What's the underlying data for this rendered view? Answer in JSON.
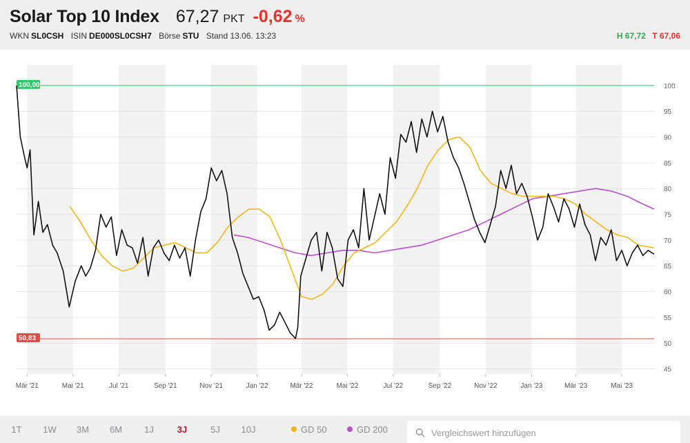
{
  "header": {
    "title": "Solar Top 10 Index",
    "price": "67,27",
    "unit": "PKT",
    "change": "-0,62",
    "change_pct": "%",
    "wkn_label": "WKN",
    "wkn": "SL0CSH",
    "isin_label": "ISIN",
    "isin": "DE000SL0CSH7",
    "boerse_label": "Börse",
    "boerse": "STU",
    "stand": "Stand 13.06. 13:23",
    "high": "H 67,72",
    "low": "T 67,06"
  },
  "colors": {
    "price_line": "#111111",
    "gd50": "#f2b619",
    "gd200": "#b84fc6",
    "high_line": "#2fc76a",
    "low_line": "#e24a45",
    "band": "#f2f2f3",
    "negative": "#e5322d",
    "positive": "#2fa84f"
  },
  "chart_data": {
    "type": "line",
    "title": "Solar Top 10 Index",
    "x_ticks": [
      "Mär '21",
      "Mai '21",
      "Jul '21",
      "Sep '21",
      "Nov '21",
      "Jan '22",
      "Mär '22",
      "Mai '22",
      "Jul '22",
      "Sep '22",
      "Nov '22",
      "Jan '23",
      "Mär '23",
      "Mai '23"
    ],
    "y_ticks": [
      100,
      95,
      90,
      85,
      80,
      75,
      70,
      65,
      60,
      55,
      50,
      45
    ],
    "ylim": [
      44,
      104
    ],
    "x_range": [
      "2021-02-15",
      "2023-06-13"
    ],
    "grid": true,
    "legend_placement": "bottom",
    "reference_lines": [
      {
        "label": "100,00",
        "value": 100.0
      },
      {
        "label": "50,83",
        "value": 50.83
      }
    ],
    "series": [
      {
        "name": "Solar Top 10 Index",
        "x": [
          "2021-02-15",
          "2021-02-20",
          "2021-02-25",
          "2021-03-01",
          "2021-03-05",
          "2021-03-10",
          "2021-03-16",
          "2021-03-22",
          "2021-03-28",
          "2021-04-04",
          "2021-04-10",
          "2021-04-18",
          "2021-04-26",
          "2021-05-04",
          "2021-05-12",
          "2021-05-18",
          "2021-05-24",
          "2021-05-31",
          "2021-06-07",
          "2021-06-14",
          "2021-06-21",
          "2021-06-28",
          "2021-07-05",
          "2021-07-12",
          "2021-07-19",
          "2021-07-26",
          "2021-08-02",
          "2021-08-09",
          "2021-08-16",
          "2021-08-23",
          "2021-08-30",
          "2021-09-06",
          "2021-09-13",
          "2021-09-20",
          "2021-09-27",
          "2021-10-04",
          "2021-10-11",
          "2021-10-18",
          "2021-10-25",
          "2021-11-01",
          "2021-11-08",
          "2021-11-15",
          "2021-11-22",
          "2021-11-29",
          "2021-12-06",
          "2021-12-13",
          "2021-12-20",
          "2021-12-27",
          "2022-01-03",
          "2022-01-10",
          "2022-01-17",
          "2022-01-24",
          "2022-01-31",
          "2022-02-07",
          "2022-02-14",
          "2022-02-21",
          "2022-02-24",
          "2022-02-28",
          "2022-03-07",
          "2022-03-14",
          "2022-03-21",
          "2022-03-28",
          "2022-04-04",
          "2022-04-11",
          "2022-04-18",
          "2022-04-25",
          "2022-05-02",
          "2022-05-09",
          "2022-05-16",
          "2022-05-23",
          "2022-05-30",
          "2022-06-06",
          "2022-06-13",
          "2022-06-20",
          "2022-06-27",
          "2022-07-04",
          "2022-07-11",
          "2022-07-18",
          "2022-07-25",
          "2022-08-01",
          "2022-08-08",
          "2022-08-15",
          "2022-08-22",
          "2022-08-29",
          "2022-09-05",
          "2022-09-12",
          "2022-09-19",
          "2022-09-26",
          "2022-10-03",
          "2022-10-10",
          "2022-10-17",
          "2022-10-24",
          "2022-10-31",
          "2022-11-07",
          "2022-11-14",
          "2022-11-21",
          "2022-11-28",
          "2022-12-05",
          "2022-12-12",
          "2022-12-19",
          "2022-12-26",
          "2023-01-02",
          "2023-01-09",
          "2023-01-16",
          "2023-01-23",
          "2023-01-30",
          "2023-02-06",
          "2023-02-13",
          "2023-02-20",
          "2023-02-27",
          "2023-03-06",
          "2023-03-13",
          "2023-03-20",
          "2023-03-27",
          "2023-04-03",
          "2023-04-10",
          "2023-04-17",
          "2023-04-24",
          "2023-05-01",
          "2023-05-08",
          "2023-05-15",
          "2023-05-22",
          "2023-05-29",
          "2023-06-05",
          "2023-06-13"
        ],
        "values": [
          100.0,
          90.0,
          86.5,
          84.0,
          87.5,
          71.0,
          77.5,
          71.5,
          73.0,
          69.0,
          67.5,
          64.0,
          57.0,
          62.0,
          65.0,
          63.0,
          64.5,
          68.0,
          75.0,
          72.5,
          74.5,
          67.0,
          72.0,
          69.0,
          68.5,
          65.5,
          70.5,
          63.0,
          68.5,
          70.0,
          67.5,
          66.0,
          69.0,
          66.5,
          68.5,
          63.0,
          70.0,
          75.5,
          78.0,
          84.0,
          81.5,
          83.5,
          79.0,
          70.5,
          67.5,
          63.5,
          61.0,
          58.5,
          59.0,
          56.5,
          52.5,
          53.5,
          56.0,
          54.0,
          52.0,
          50.9,
          53.0,
          63.0,
          66.5,
          70.0,
          71.5,
          64.0,
          71.5,
          68.5,
          62.5,
          61.0,
          70.0,
          72.0,
          68.5,
          80.0,
          70.0,
          74.5,
          79.0,
          75.0,
          86.0,
          82.0,
          90.5,
          89.0,
          93.0,
          87.0,
          93.5,
          90.0,
          95.0,
          91.0,
          94.0,
          89.0,
          86.0,
          84.0,
          81.0,
          77.5,
          74.0,
          71.5,
          69.5,
          73.0,
          76.5,
          83.5,
          80.0,
          84.5,
          79.0,
          81.0,
          78.5,
          74.5,
          70.0,
          72.5,
          79.0,
          76.5,
          73.5,
          78.0,
          76.0,
          72.5,
          77.0,
          73.0,
          71.0,
          66.0,
          70.5,
          69.0,
          72.0,
          66.0,
          68.0,
          65.0,
          67.5,
          69.0,
          67.0,
          68.0,
          67.27
        ]
      },
      {
        "name": "GD 50",
        "x": [
          "2021-04-27",
          "2021-05-11",
          "2021-05-25",
          "2021-06-08",
          "2021-06-22",
          "2021-07-06",
          "2021-07-20",
          "2021-08-03",
          "2021-08-17",
          "2021-08-31",
          "2021-09-14",
          "2021-09-28",
          "2021-10-12",
          "2021-10-26",
          "2021-11-09",
          "2021-11-23",
          "2021-12-07",
          "2021-12-21",
          "2022-01-04",
          "2022-01-18",
          "2022-02-01",
          "2022-02-15",
          "2022-03-01",
          "2022-03-15",
          "2022-03-29",
          "2022-04-12",
          "2022-04-26",
          "2022-05-10",
          "2022-05-24",
          "2022-06-07",
          "2022-06-21",
          "2022-07-05",
          "2022-07-19",
          "2022-08-02",
          "2022-08-16",
          "2022-08-30",
          "2022-09-13",
          "2022-09-27",
          "2022-10-11",
          "2022-10-25",
          "2022-11-08",
          "2022-11-22",
          "2022-12-06",
          "2022-12-20",
          "2023-01-03",
          "2023-01-17",
          "2023-01-31",
          "2023-02-14",
          "2023-02-28",
          "2023-03-14",
          "2023-03-28",
          "2023-04-11",
          "2023-04-25",
          "2023-05-09",
          "2023-05-23",
          "2023-06-13"
        ],
        "values": [
          76.5,
          73.5,
          70.0,
          67.0,
          65.0,
          64.0,
          64.5,
          66.5,
          68.5,
          69.0,
          69.5,
          68.5,
          67.5,
          67.5,
          69.5,
          72.5,
          74.5,
          76.0,
          76.0,
          74.5,
          70.0,
          64.5,
          59.0,
          58.5,
          59.5,
          61.5,
          65.0,
          67.5,
          68.5,
          69.5,
          71.5,
          73.5,
          76.5,
          80.0,
          84.5,
          87.5,
          89.5,
          90.0,
          88.0,
          83.5,
          81.0,
          80.0,
          79.0,
          78.5,
          78.5,
          78.5,
          78.5,
          78.0,
          77.0,
          75.0,
          73.5,
          72.0,
          71.0,
          70.5,
          69.0,
          68.5
        ]
      },
      {
        "name": "GD 200",
        "x": [
          "2021-12-01",
          "2021-12-20",
          "2022-01-10",
          "2022-01-31",
          "2022-02-21",
          "2022-03-14",
          "2022-04-04",
          "2022-04-25",
          "2022-05-16",
          "2022-06-06",
          "2022-06-27",
          "2022-07-18",
          "2022-08-08",
          "2022-08-29",
          "2022-09-19",
          "2022-10-10",
          "2022-10-31",
          "2022-11-21",
          "2022-12-12",
          "2023-01-02",
          "2023-01-23",
          "2023-02-13",
          "2023-03-06",
          "2023-03-27",
          "2023-04-17",
          "2023-05-08",
          "2023-05-29",
          "2023-06-13"
        ],
        "values": [
          71.0,
          70.5,
          69.5,
          68.5,
          67.5,
          67.0,
          67.5,
          68.0,
          68.0,
          67.5,
          68.0,
          68.5,
          69.0,
          70.0,
          71.0,
          72.0,
          73.5,
          75.0,
          76.5,
          78.0,
          78.5,
          79.0,
          79.5,
          80.0,
          79.5,
          78.5,
          77.0,
          76.0
        ]
      }
    ]
  },
  "footer": {
    "ranges": [
      "1T",
      "1W",
      "3M",
      "6M",
      "1J",
      "3J",
      "5J",
      "10J"
    ],
    "active_range": "3J",
    "gd50_label": "GD 50",
    "gd200_label": "GD 200",
    "compare_placeholder": "Vergleichswert hinzufügen"
  }
}
